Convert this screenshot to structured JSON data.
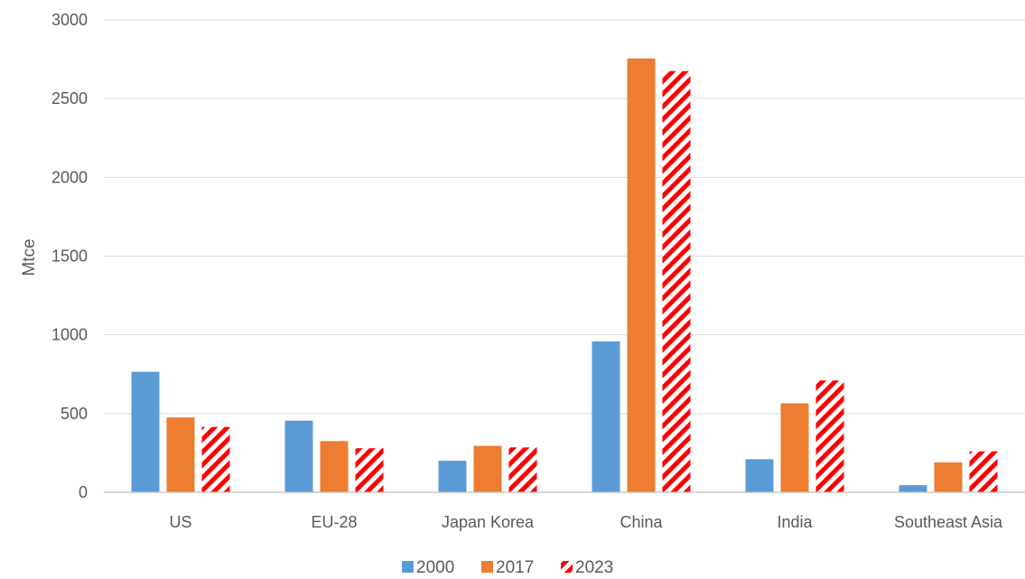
{
  "chart_data": {
    "type": "bar",
    "title": "",
    "xlabel": "",
    "ylabel": "Mtce",
    "ylim": [
      0,
      3000
    ],
    "yticks": [
      0,
      500,
      1000,
      1500,
      2000,
      2500,
      3000
    ],
    "grid": true,
    "legend_position": "bottom",
    "categories": [
      "US",
      "EU-28",
      "Japan Korea",
      "China",
      "India",
      "Southeast Asia"
    ],
    "series": [
      {
        "name": "2000",
        "color": "#5b9bd5",
        "pattern": "solid",
        "values": [
          765,
          455,
          200,
          958,
          210,
          45
        ]
      },
      {
        "name": "2017",
        "color": "#ed7d31",
        "pattern": "solid",
        "values": [
          475,
          325,
          295,
          2755,
          565,
          190
        ]
      },
      {
        "name": "2023",
        "color": "#ff0000",
        "pattern": "diagonal-stripes",
        "values": [
          415,
          280,
          285,
          2675,
          710,
          260
        ]
      }
    ]
  }
}
